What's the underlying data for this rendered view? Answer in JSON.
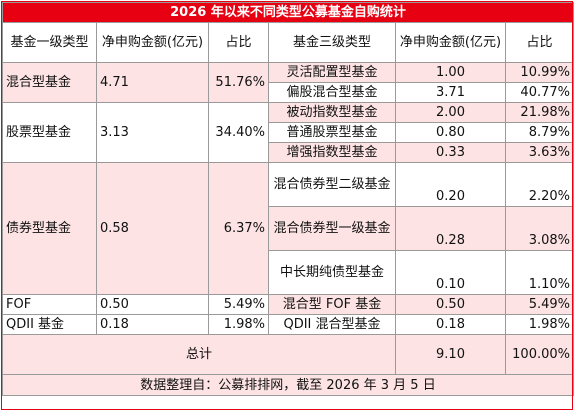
{
  "title": "2026 年以来不同类型公募基金自购统计",
  "headers": {
    "left_type": "基金一级类型",
    "left_amount": "净申购金额(亿元)",
    "left_ratio": "占比",
    "right_type": "基金三级类型",
    "right_amount": "净申购金额(亿元)",
    "right_ratio": "占比"
  },
  "groups": [
    {
      "name": "混合型基金",
      "amount": "4.71",
      "ratio": "51.76%",
      "subs": [
        {
          "name": "灵活配置型基金",
          "amount": "1.00",
          "ratio": "10.99%"
        },
        {
          "name": "偏股混合型基金",
          "amount": "3.71",
          "ratio": "40.77%"
        }
      ]
    },
    {
      "name": "股票型基金",
      "amount": "3.13",
      "ratio": "34.40%",
      "subs": [
        {
          "name": "被动指数型基金",
          "amount": "2.00",
          "ratio": "21.98%"
        },
        {
          "name": "普通股票型基金",
          "amount": "0.80",
          "ratio": "8.79%"
        },
        {
          "name": "增强指数型基金",
          "amount": "0.33",
          "ratio": "3.63%"
        }
      ]
    },
    {
      "name": "债券型基金",
      "amount": "0.58",
      "ratio": "6.37%",
      "subs": [
        {
          "name": "混合债券型二级基金",
          "amount": "0.20",
          "ratio": "2.20%"
        },
        {
          "name": "混合债券型一级基金",
          "amount": "0.28",
          "ratio": "3.08%"
        },
        {
          "name": "中长期纯债型基金",
          "amount": "0.10",
          "ratio": "1.10%"
        }
      ]
    },
    {
      "name": "FOF",
      "amount": "0.50",
      "ratio": "5.49%",
      "subs": [
        {
          "name": "混合型 FOF 基金",
          "amount": "0.50",
          "ratio": "5.49%"
        }
      ]
    },
    {
      "name": "QDII 基金",
      "amount": "0.18",
      "ratio": "1.98%",
      "subs": [
        {
          "name": "QDII 混合型基金",
          "amount": "0.18",
          "ratio": "1.98%"
        }
      ]
    }
  ],
  "total": {
    "label": "总计",
    "amount": "9.10",
    "ratio": "100.00%"
  },
  "footer": "数据整理自：公募排排网，截至 2026 年 3 月 5 日",
  "colors": {
    "title_bg": "#e60012",
    "stripe": "#fde3e3"
  }
}
